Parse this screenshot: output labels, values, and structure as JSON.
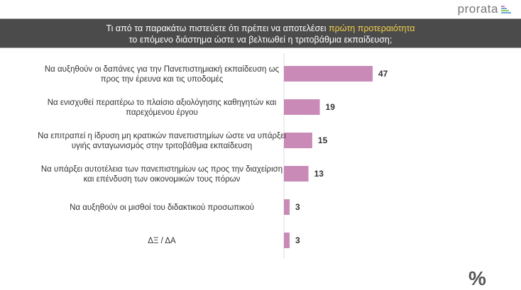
{
  "brand": {
    "logo_text": "prorata"
  },
  "header": {
    "line1_prefix": "Τι από τα παρακάτω πιστεύετε ότι πρέπει να αποτελέσει ",
    "line1_highlight": "πρώτη προτεραιότητα",
    "line2": "το επόμενο διάστημα ώστε να βελτιωθεί η τριτοβάθμια εκπαίδευση;",
    "highlight_color": "#f2d04a"
  },
  "chart_data": {
    "type": "bar",
    "orientation": "horizontal",
    "categories": [
      [
        "Να αυξηθούν οι δαπάνες για την Πανεπιστημιακή εκπαίδευση ως",
        "προς την έρευνα και τις υποδομές"
      ],
      [
        "Να ενισχυθεί περαιτέρω το πλαίσιο αξιολόγησης καθηγητών και",
        "παρεχόμενου έργου"
      ],
      [
        "Να επιτραπεί η ίδρυση μη κρατικών πανεπιστημίων ώστε να υπάρξει",
        "υγιής ανταγωνισμός στην τριτοβάθμια εκπαίδευση"
      ],
      [
        "Να υπάρξει αυτοτέλεια των πανεπιστημίων ως προς την διαχείριση",
        "και επένδυση των οικονομικών τους πόρων"
      ],
      [
        "Να αυξηθούν οι μισθοί του διδακτικού προσωπικού"
      ],
      [
        "ΔΞ / ΔΑ"
      ]
    ],
    "values": [
      47,
      19,
      15,
      13,
      3,
      3
    ],
    "bar_color": "#c98ab7",
    "grid": false
  },
  "footer": {
    "symbol": "%"
  }
}
